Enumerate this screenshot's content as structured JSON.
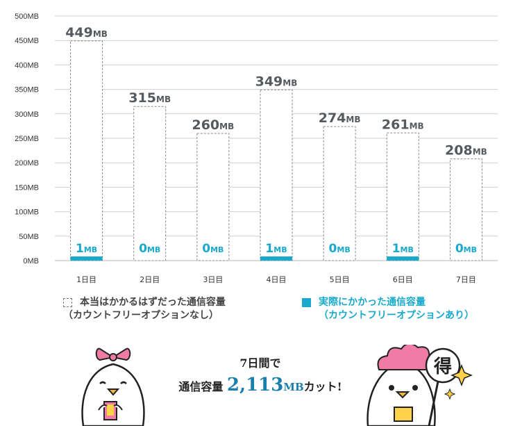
{
  "chart_data": {
    "type": "bar",
    "categories": [
      "1日目",
      "2日目",
      "3日目",
      "4日目",
      "5日目",
      "6日目",
      "7日目"
    ],
    "series": [
      {
        "name": "本当はかかるはずだった通信容量（カウントフリーオプションなし）",
        "values": [
          449,
          315,
          260,
          349,
          274,
          261,
          208
        ],
        "style": "dashed-outline"
      },
      {
        "name": "実際にかかった通信容量（カウントフリーオプションあり）",
        "values": [
          1,
          0,
          0,
          1,
          0,
          1,
          0
        ],
        "style": "solid",
        "color": "#18a9cd"
      }
    ],
    "value_labels": {
      "total": [
        "449",
        "315",
        "260",
        "349",
        "274",
        "261",
        "208"
      ],
      "actual": [
        "1",
        "0",
        "0",
        "1",
        "0",
        "1",
        "0"
      ],
      "unit": "MB"
    },
    "yticks": [
      "0MB",
      "50MB",
      "100MB",
      "150MB",
      "200MB",
      "250MB",
      "300MB",
      "350MB",
      "400MB",
      "450MB",
      "500MB"
    ],
    "ylim": [
      0,
      500
    ],
    "grid": true,
    "legend_position": "bottom"
  },
  "legend": {
    "item1_line1": "本当はかかるはずだった通信容量",
    "item1_line2": "（カウントフリーオプションなし）",
    "item2_line1": "実際にかかった通信容量",
    "item2_line2": "（カウントフリーオプションあり）"
  },
  "summary": {
    "line1": "7日間で",
    "prefix": "通信容量",
    "amount": "2,113",
    "unit": "MB",
    "suffix": "カット!"
  },
  "characters": {
    "right_sign": "得"
  },
  "colors": {
    "accent": "#18a9cd",
    "grid": "#cfcfcf",
    "label": "#555a5f",
    "pink": "#f07ca6"
  }
}
